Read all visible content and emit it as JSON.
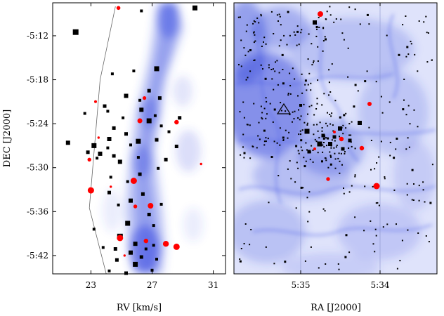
{
  "chart_data": [
    {
      "type": "scatter",
      "panel": "left",
      "xlabel": "RV [km/s]",
      "ylabel": "DEC [J2000]",
      "xlim": [
        20.5,
        31.8
      ],
      "ylim_arcmin_below_minus5deg": [
        7.5,
        44.5
      ],
      "x_ticks": [
        {
          "value": 23,
          "label": "23"
        },
        {
          "value": 27,
          "label": "27"
        },
        {
          "value": 31,
          "label": "31"
        }
      ],
      "y_ticks": [
        {
          "value": 12,
          "label": "-5:12"
        },
        {
          "value": 18,
          "label": "-5:18"
        },
        {
          "value": 24,
          "label": "-5:24"
        },
        {
          "value": 30,
          "label": "-5:30"
        },
        {
          "value": 36,
          "label": "-5:36"
        },
        {
          "value": 42,
          "label": "-5:42"
        }
      ],
      "background": "gas emission position-velocity map (blue)",
      "boundary_line": [
        [
          24.6,
          8.0
        ],
        [
          23.6,
          18.0
        ],
        [
          22.9,
          35.5
        ],
        [
          24.0,
          44.5
        ]
      ],
      "series": [
        {
          "name": "black stars",
          "color": "#000000",
          "marker": "square",
          "points": [
            [
              22.0,
              11.5,
              8
            ],
            [
              26.3,
              8.6,
              4
            ],
            [
              29.8,
              8.2,
              7
            ],
            [
              24.4,
              17.2,
              4
            ],
            [
              25.8,
              16.8,
              4
            ],
            [
              27.3,
              16.5,
              7
            ],
            [
              26.8,
              19.5,
              5
            ],
            [
              25.3,
              20.2,
              6
            ],
            [
              26.2,
              20.8,
              4
            ],
            [
              27.5,
              20.5,
              5
            ],
            [
              23.9,
              21.6,
              5
            ],
            [
              26.3,
              22.1,
              6
            ],
            [
              27.2,
              22.9,
              4
            ],
            [
              22.6,
              22.6,
              4
            ],
            [
              24.1,
              22.3,
              4
            ],
            [
              25.1,
              23.2,
              4
            ],
            [
              28.8,
              23.2,
              5
            ],
            [
              26.8,
              23.6,
              7
            ],
            [
              27.6,
              24.3,
              4
            ],
            [
              24.5,
              24.6,
              5
            ],
            [
              25.3,
              25.4,
              5
            ],
            [
              28.1,
              25.1,
              4
            ],
            [
              24.2,
              26.1,
              6
            ],
            [
              26.1,
              26.4,
              7
            ],
            [
              27.3,
              26.2,
              5
            ],
            [
              21.5,
              26.6,
              6
            ],
            [
              23.2,
              27.0,
              7
            ],
            [
              24.1,
              27.3,
              4
            ],
            [
              25.6,
              26.9,
              4
            ],
            [
              28.6,
              27.1,
              5
            ],
            [
              22.8,
              27.9,
              5
            ],
            [
              23.6,
              28.1,
              6
            ],
            [
              24.5,
              28.4,
              5
            ],
            [
              26.1,
              28.6,
              4
            ],
            [
              27.9,
              28.9,
              5
            ],
            [
              23.4,
              28.7,
              4
            ],
            [
              24.9,
              29.2,
              6
            ],
            [
              26.2,
              30.9,
              5
            ],
            [
              27.4,
              30.1,
              4
            ],
            [
              25.4,
              31.9,
              4
            ],
            [
              24.2,
              33.4,
              5
            ],
            [
              26.4,
              33.6,
              5
            ],
            [
              25.6,
              34.5,
              6
            ],
            [
              24.8,
              35.1,
              4
            ],
            [
              27.6,
              35.0,
              4
            ],
            [
              26.8,
              36.4,
              5
            ],
            [
              25.4,
              37.6,
              7
            ],
            [
              27.1,
              37.9,
              4
            ],
            [
              23.2,
              38.4,
              4
            ],
            [
              24.9,
              39.4,
              8
            ],
            [
              25.9,
              40.4,
              6
            ],
            [
              27.1,
              40.6,
              4
            ],
            [
              23.8,
              40.9,
              4
            ],
            [
              24.6,
              41.1,
              5
            ],
            [
              25.6,
              41.6,
              6
            ],
            [
              26.3,
              42.2,
              5
            ],
            [
              27.3,
              42.5,
              4
            ],
            [
              24.7,
              42.6,
              5
            ],
            [
              25.9,
              43.2,
              7
            ],
            [
              24.2,
              44.1,
              4
            ],
            [
              27.0,
              44.0,
              4
            ],
            [
              25.3,
              44.4,
              5
            ],
            [
              26.6,
              41.1,
              4
            ],
            [
              24.3,
              31.3,
              4
            ]
          ]
        },
        {
          "name": "red stars",
          "color": "#ff0000",
          "marker": "circle",
          "points": [
            [
              24.8,
              8.2,
              2.8
            ],
            [
              26.5,
              20.5,
              2.6
            ],
            [
              23.3,
              21.0,
              2.0
            ],
            [
              26.2,
              23.6,
              3.5
            ],
            [
              28.6,
              23.8,
              3.2
            ],
            [
              23.5,
              25.9,
              1.7
            ],
            [
              22.9,
              28.9,
              2.7
            ],
            [
              30.2,
              29.5,
              1.7
            ],
            [
              25.8,
              31.8,
              4.5
            ],
            [
              23.0,
              33.1,
              4.5
            ],
            [
              24.3,
              32.6,
              1.7
            ],
            [
              25.9,
              35.3,
              2.7
            ],
            [
              26.9,
              35.2,
              4.0
            ],
            [
              24.9,
              39.6,
              4.5
            ],
            [
              26.6,
              40.0,
              3.2
            ],
            [
              27.9,
              40.4,
              4.2
            ],
            [
              28.6,
              40.8,
              4.5
            ],
            [
              25.2,
              42.0,
              1.7
            ]
          ]
        }
      ]
    },
    {
      "type": "scatter",
      "panel": "right",
      "xlabel": "RA [J2000]",
      "ylabel": "",
      "x_ticks": [
        {
          "label": "5:35"
        },
        {
          "label": "5:34"
        }
      ],
      "y_ticks": "shared with left panel",
      "background": "nebula emission image (blue)",
      "annotations": [
        {
          "type": "triangle",
          "description": "open triangle marker"
        }
      ],
      "series": [
        {
          "name": "black stars",
          "color": "#000000",
          "marker": "square"
        },
        {
          "name": "red stars",
          "color": "#ff0000",
          "marker": "circle",
          "count": 8
        }
      ]
    }
  ],
  "colors": {
    "gas": "#3344dd",
    "frame": "#000000",
    "red_marker": "#ff0000",
    "black_marker": "#000000",
    "background": "#ffffff"
  }
}
